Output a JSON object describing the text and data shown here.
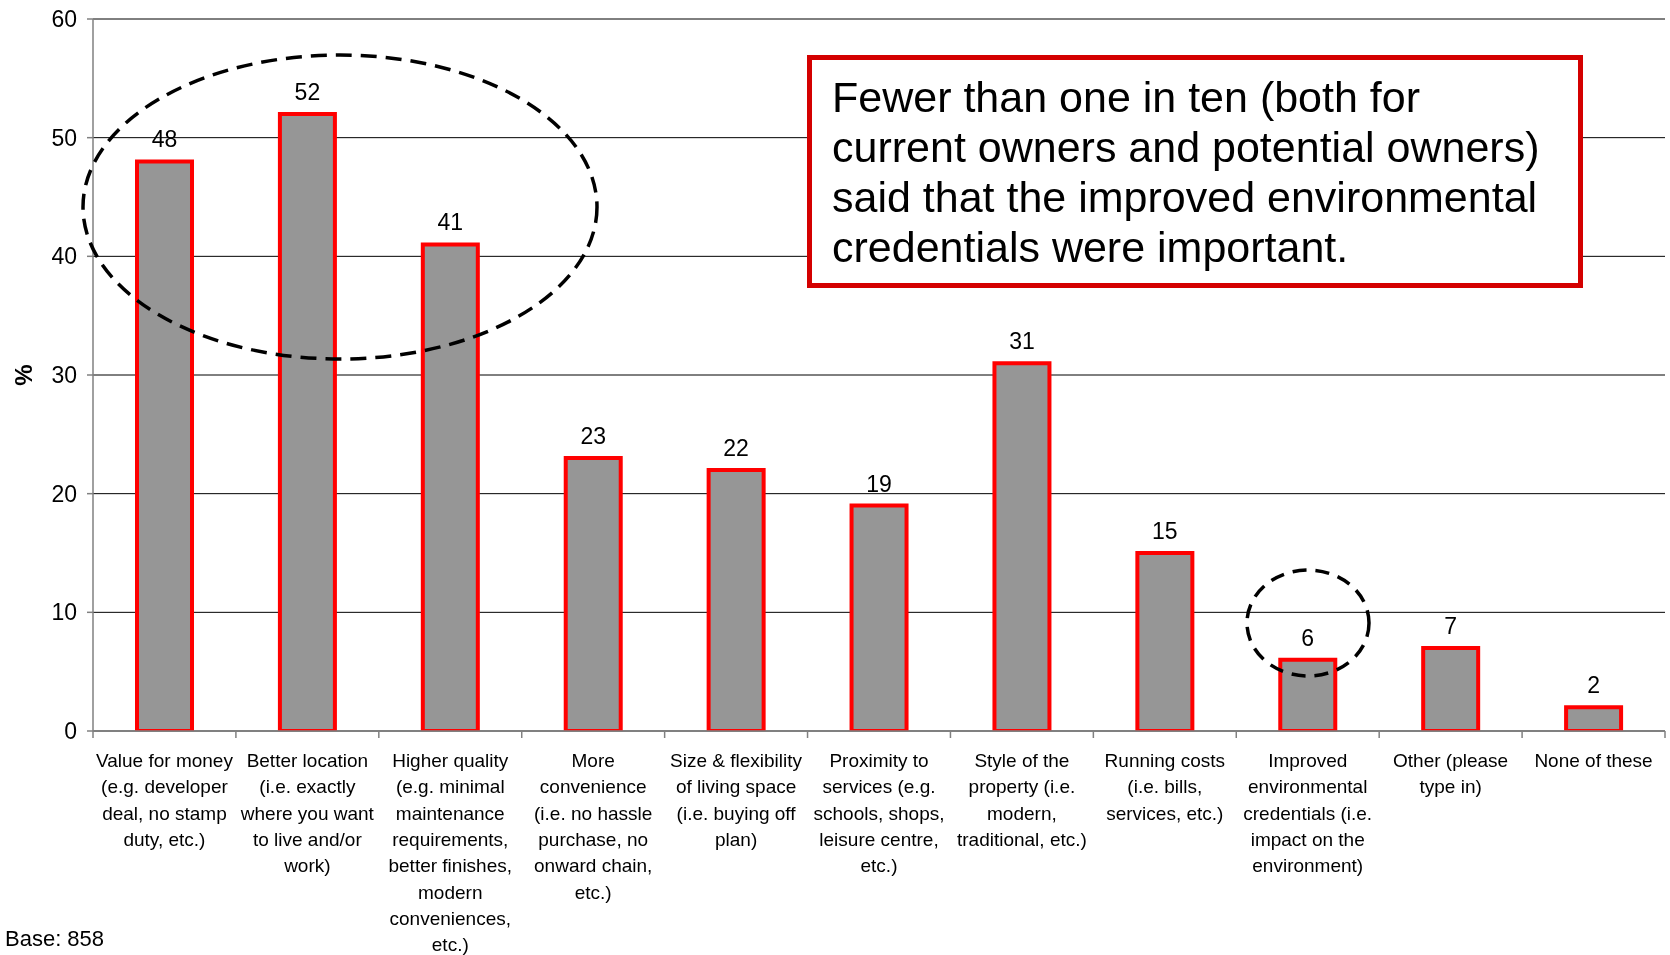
{
  "chart_data": {
    "type": "bar",
    "categories": [
      "Value for money (e.g. developer deal, no stamp duty, etc.)",
      "Better location (i.e. exactly where you want to live and/or work)",
      "Higher quality (e.g. minimal maintenance requirements, better finishes, modern conveniences, etc.)",
      "More convenience (i.e. no hassle purchase, no onward chain, etc.)",
      "Size & flexibility of living space (i.e. buying off plan)",
      "Proximity to services (e.g. schools, shops, leisure centre, etc.)",
      "Style of the property (i.e. modern, traditional, etc.)",
      "Running costs (i.e. bills, services, etc.)",
      "Improved environmental credentials (i.e. impact on the environment)",
      "Other (please type in)",
      "None of these"
    ],
    "values": [
      48,
      52,
      41,
      23,
      22,
      19,
      31,
      15,
      6,
      7,
      2
    ],
    "color": "#969696",
    "ylabel": "%",
    "ylim": [
      0,
      60
    ],
    "yticks": [
      0,
      10,
      20,
      30,
      40,
      50,
      60
    ],
    "grid": "y",
    "data_labels": true,
    "annotations": [
      "Fewer than one in ten (both for current owners and potential owners) said that the improved environmental credentials were important.",
      "Base: 858"
    ]
  }
}
